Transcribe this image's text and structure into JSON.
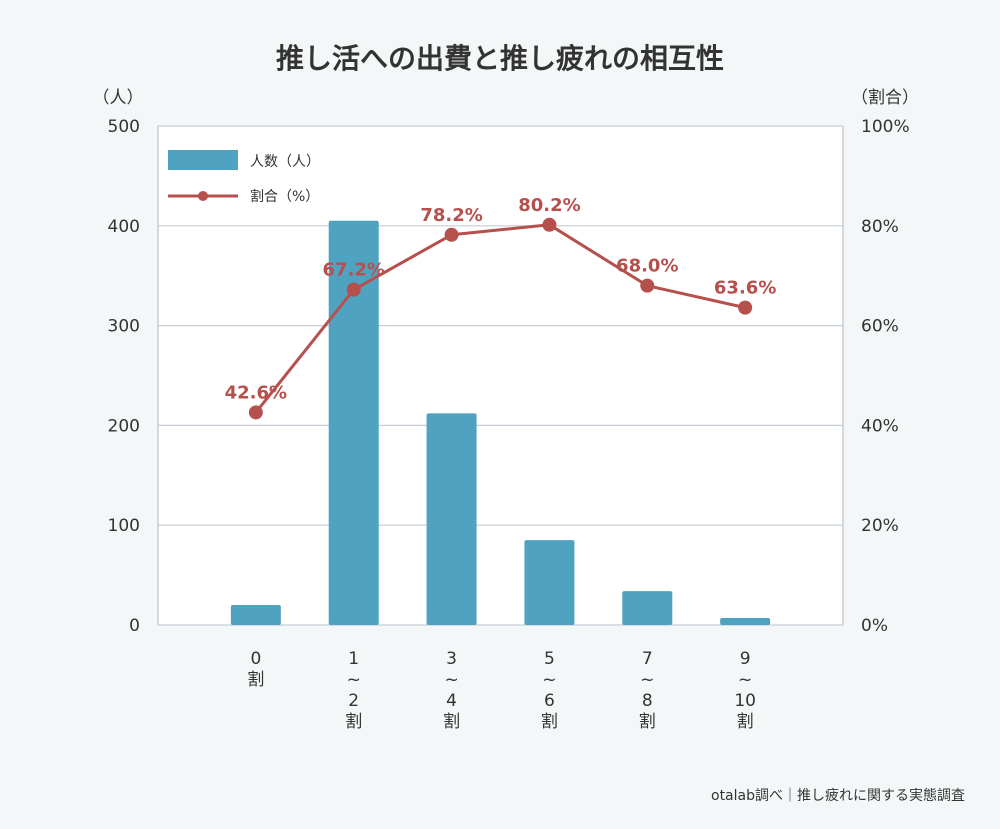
{
  "chart_data": {
    "type": "bar",
    "title": "推し活への出費と推し疲れの相互性",
    "categories": [
      [
        "0",
        "割"
      ],
      [
        "1",
        "~",
        "2",
        "割"
      ],
      [
        "3",
        "~",
        "4",
        "割"
      ],
      [
        "5",
        "~",
        "6",
        "割"
      ],
      [
        "7",
        "~",
        "8",
        "割"
      ],
      [
        "9",
        "~",
        "10",
        "割"
      ]
    ],
    "ylabel_left": "（人）",
    "ylabel_right": "（割合）",
    "ylim_left": [
      0,
      500
    ],
    "ylim_right": [
      0,
      100
    ],
    "yticks_left": [
      "0",
      "100",
      "200",
      "300",
      "400",
      "500"
    ],
    "yticks_right": [
      "0%",
      "20%",
      "40%",
      "60%",
      "80%",
      "100%"
    ],
    "grid": true,
    "legend_position": "top-left",
    "series": [
      {
        "name": "人数（人）",
        "type": "bar",
        "axis": "left",
        "color": "#4fa3c0",
        "values": [
          20,
          405,
          212,
          85,
          34,
          7
        ]
      },
      {
        "name": "割合（%）",
        "type": "line",
        "axis": "right",
        "color": "#b5504c",
        "values": [
          42.6,
          67.2,
          78.2,
          80.2,
          68.0,
          63.6
        ],
        "labels": [
          "42.6%",
          "67.2%",
          "78.2%",
          "80.2%",
          "68.0%",
          "63.6%"
        ]
      }
    ]
  },
  "source": "otalab調べ｜推し疲れに関する実態調査"
}
